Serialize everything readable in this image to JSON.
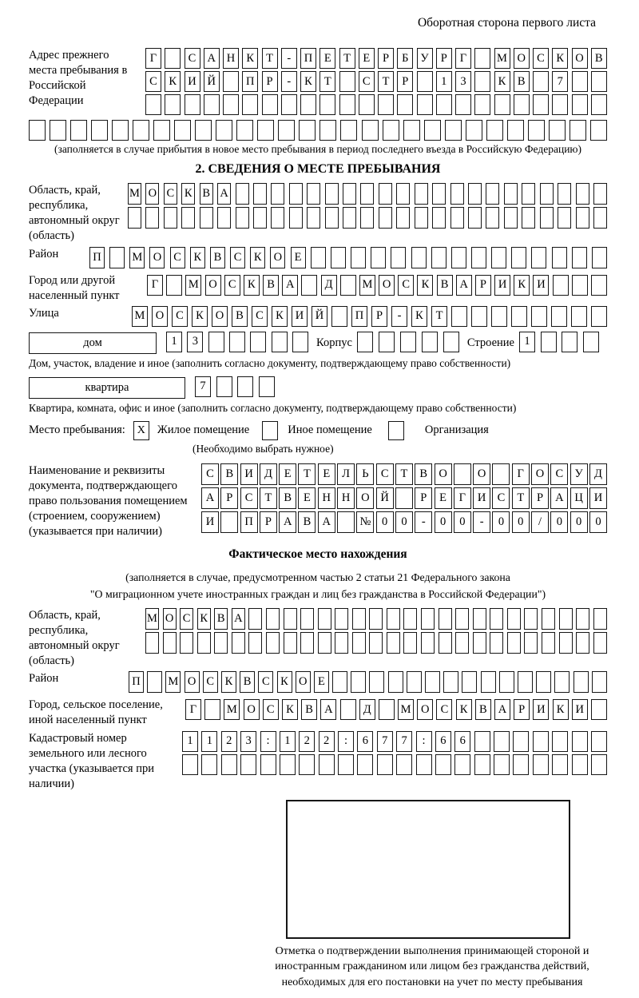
{
  "page": {
    "header_note": "Оборотная сторона первого листа"
  },
  "prev_address": {
    "label": "Адрес прежнего места пребывания в Российской Федерации",
    "rows": [
      {
        "text": "Г САНКТ-ПЕТЕРБУРГ МОСКОВ",
        "count": 24
      },
      {
        "text": "СКИЙ ПР-КТ СТР 13 КВ 7",
        "count": 24
      },
      {
        "text": "",
        "count": 24
      },
      {
        "text": "",
        "count": 28
      }
    ],
    "note": "(заполняется в случае прибытия в новое место пребывания в период последнего въезда в Российскую Федерацию)"
  },
  "section2": {
    "title": "2. СВЕДЕНИЯ О МЕСТЕ ПРЕБЫВАНИЯ",
    "oblast": {
      "label": "Область, край, республика, автономный округ (область)",
      "rows": [
        {
          "text": "МОСКВА",
          "count": 27
        },
        {
          "text": "",
          "count": 27
        }
      ]
    },
    "rayon": {
      "label": "Район",
      "row": {
        "text": "П МОСКВСКОЕ",
        "count": 26
      }
    },
    "gorod": {
      "label": "Город или другой населенный пункт",
      "row": {
        "text": "Г МОСКВА Д МОСКВАРИКИ",
        "count": 24
      }
    },
    "ulitsa": {
      "label": "Улица",
      "row": {
        "text": "МОСКОВСКИЙ ПР-КТ",
        "count": 24
      }
    },
    "dom": {
      "box_label": "дом",
      "row": {
        "text": "13",
        "count": 7
      },
      "korpus_label": "Корпус",
      "korpus_row": {
        "text": "",
        "count": 5
      },
      "stroenie_label": "Строение",
      "stroenie_row": {
        "text": "1",
        "count": 4
      },
      "caption": "Дом, участок, владение и иное (заполнить согласно документу, подтверждающему право собственности)"
    },
    "kvartira": {
      "box_label": "квартира",
      "row": {
        "text": "7",
        "count": 4
      },
      "caption": "Квартира, комната, офис и иное (заполнить согласно документу, подтверждающему право собственности)"
    },
    "mesto": {
      "label": "Место пребывания:",
      "options": [
        {
          "mark": "X",
          "label": "Жилое помещение"
        },
        {
          "mark": "",
          "label": "Иное помещение"
        },
        {
          "mark": "",
          "label": "Организация"
        }
      ],
      "note": "(Необходимо выбрать нужное)"
    },
    "doc": {
      "label": "Наименование и реквизиты документа, подтверждающего право пользования помещением (строением, сооружением) (указывается при наличии)",
      "rows": [
        {
          "text": "СВИДЕТЕЛЬСТВО О ГОСУД",
          "count": 21
        },
        {
          "text": "АРСТВЕННОЙ РЕГИСТРАЦИ",
          "count": 21
        },
        {
          "text": "И ПРАВА №00-00-00/000",
          "count": 21
        }
      ]
    }
  },
  "fact": {
    "title": "Фактическое место нахождения",
    "note1": "(заполняется в случае, предусмотренном частью 2 статьи 21 Федерального закона",
    "note2": "\"О миграционном учете иностранных граждан и лиц без гражданства в Российской Федерации\")",
    "oblast": {
      "label": "Область, край, республика, автономный округ (область)",
      "rows": [
        {
          "text": "МОСКВА",
          "count": 27
        },
        {
          "text": "",
          "count": 27
        }
      ]
    },
    "rayon": {
      "label": "Район",
      "row": {
        "text": "П МОСКВСКОЕ",
        "count": 26
      }
    },
    "gorod": {
      "label": "Город, сельское поселение, иной населенный пункт",
      "row": {
        "text": "Г МОСКВА Д МОСКВАРИКИ",
        "count": 22
      }
    },
    "kadastr": {
      "label": "Кадастровый номер земельного или лесного участка (указывается при наличии)",
      "rows": [
        {
          "text": "1123:122:677:66",
          "count": 22
        },
        {
          "text": "",
          "count": 22
        }
      ]
    },
    "stamp_caption": "Отметка о подтверждении выполнения принимающей стороной и иностранным гражданином или лицом без гражданства действий, необходимых для его постановки на учет по месту пребывания"
  }
}
